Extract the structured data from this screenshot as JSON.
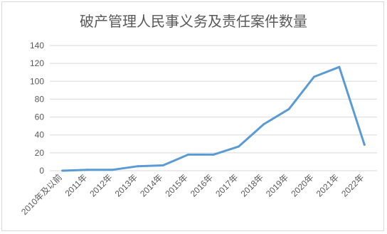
{
  "chart_data": {
    "type": "line",
    "title": "破产管理人民事义务及责任案件数量",
    "xlabel": "",
    "ylabel": "",
    "categories": [
      "2010年及以前",
      "2011年",
      "2012年",
      "2013年",
      "2014年",
      "2015年",
      "2016年",
      "2017年",
      "2018年",
      "2019年",
      "2020年",
      "2021年",
      "2022年"
    ],
    "series": [
      {
        "values": [
          0,
          1,
          1,
          5,
          6,
          18,
          18,
          27,
          52,
          69,
          105,
          116,
          29
        ]
      }
    ],
    "ylim": [
      0,
      140
    ],
    "yticks": [
      0,
      20,
      40,
      60,
      80,
      100,
      120,
      140
    ],
    "grid": true,
    "legend": "none",
    "line_color": "#5b9bd5",
    "grid_color": "#d9d9d9"
  }
}
